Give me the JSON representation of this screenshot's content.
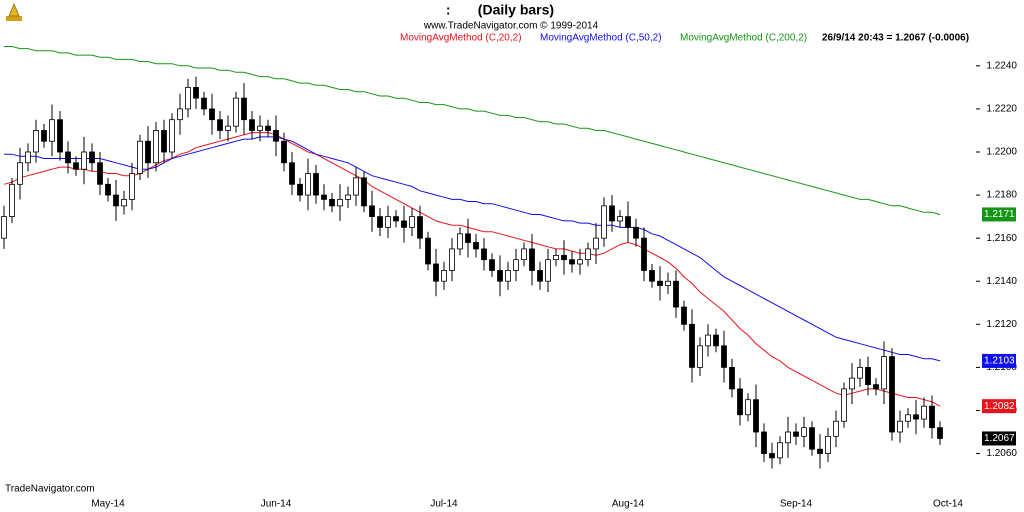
{
  "chart_data": {
    "type": "candlestick",
    "title": ":       (Daily bars)",
    "subtitle": "www.TradeNavigator.com © 1999-2014",
    "status": "26/9/14 20:43 = 1.2067 (-0.0006)",
    "watermark": "TradeNavigator.com",
    "up_color": "#ffffff",
    "down_color": "#000000",
    "ylim": [
      1.2044,
      1.2252
    ],
    "yticks": [
      {
        "value": 1.206,
        "label": "1.2060"
      },
      {
        "value": 1.208,
        "label": "1.2080"
      },
      {
        "value": 1.21,
        "label": "1.2100"
      },
      {
        "value": 1.212,
        "label": "1.2120"
      },
      {
        "value": 1.214,
        "label": "1.2140"
      },
      {
        "value": 1.216,
        "label": "1.2160"
      },
      {
        "value": 1.218,
        "label": "1.2180"
      },
      {
        "value": 1.22,
        "label": "1.2200"
      },
      {
        "value": 1.222,
        "label": "1.2220"
      },
      {
        "value": 1.224,
        "label": "1.2240"
      }
    ],
    "categories": [
      null,
      null,
      null,
      null,
      null,
      null,
      null,
      null,
      null,
      null,
      null,
      null,
      null,
      "May-14",
      null,
      null,
      null,
      null,
      null,
      null,
      null,
      null,
      null,
      null,
      null,
      null,
      null,
      null,
      null,
      null,
      null,
      null,
      null,
      null,
      "Jun-14",
      null,
      null,
      null,
      null,
      null,
      null,
      null,
      null,
      null,
      null,
      null,
      null,
      null,
      null,
      null,
      null,
      null,
      null,
      null,
      null,
      "Jul-14",
      null,
      null,
      null,
      null,
      null,
      null,
      null,
      null,
      null,
      null,
      null,
      null,
      null,
      null,
      null,
      null,
      null,
      null,
      null,
      null,
      null,
      null,
      "Aug-14",
      null,
      null,
      null,
      null,
      null,
      null,
      null,
      null,
      null,
      null,
      null,
      null,
      null,
      null,
      null,
      null,
      null,
      null,
      null,
      null,
      "Sep-14",
      null,
      null,
      null,
      null,
      null,
      null,
      null,
      null,
      null,
      null,
      null,
      null,
      null,
      null,
      null,
      null,
      null,
      null,
      "Oct-14",
      null
    ],
    "open": [
      1.216,
      1.217,
      1.2185,
      1.2195,
      1.22,
      1.221,
      1.2205,
      1.2215,
      1.22,
      1.2195,
      1.2192,
      1.22,
      1.2195,
      1.2185,
      1.218,
      1.2175,
      1.2178,
      1.219,
      1.2205,
      1.2195,
      1.221,
      1.22,
      1.2215,
      1.222,
      1.223,
      1.2225,
      1.222,
      1.2215,
      1.221,
      1.2212,
      1.2225,
      1.2215,
      1.221,
      1.2212,
      1.221,
      1.2205,
      1.2195,
      1.2185,
      1.218,
      1.219,
      1.218,
      1.2178,
      1.2175,
      1.2178,
      1.218,
      1.2188,
      1.2175,
      1.217,
      1.2165,
      1.217,
      1.2168,
      1.2165,
      1.217,
      1.216,
      1.2148,
      1.214,
      1.2145,
      1.2155,
      1.2162,
      1.2158,
      1.2155,
      1.215,
      1.2145,
      1.214,
      1.2145,
      1.215,
      1.2155,
      1.2145,
      1.214,
      1.215,
      1.2152,
      1.215,
      1.2148,
      1.215,
      1.2155,
      1.216,
      1.2175,
      1.2168,
      1.217,
      1.2165,
      1.216,
      1.2145,
      1.214,
      1.2138,
      1.214,
      1.2128,
      1.212,
      1.21,
      1.211,
      1.2115,
      1.211,
      1.21,
      1.209,
      1.2078,
      1.2085,
      1.207,
      1.206,
      1.2058,
      1.2065,
      1.207,
      1.2068,
      1.2072,
      1.2062,
      1.206,
      1.2068,
      1.2075,
      1.209,
      1.2095,
      1.21,
      1.2092,
      1.209,
      1.2105,
      1.207,
      1.2075,
      1.2078,
      1.2076,
      1.2082,
      1.2072,
      null,
      null
    ],
    "high": [
      1.2175,
      1.2188,
      1.2202,
      1.2204,
      1.2215,
      1.2213,
      1.2222,
      1.2219,
      1.2205,
      1.2198,
      1.2207,
      1.2204,
      1.22,
      1.2188,
      1.2187,
      1.2182,
      1.2195,
      1.2208,
      1.2212,
      1.2214,
      1.2215,
      1.2218,
      1.2227,
      1.2234,
      1.2235,
      1.2228,
      1.2227,
      1.2219,
      1.2217,
      1.2228,
      1.2232,
      1.2219,
      1.2217,
      1.2215,
      1.2217,
      1.2209,
      1.22,
      1.2188,
      1.2197,
      1.2194,
      1.2185,
      1.2181,
      1.2185,
      1.2184,
      1.2193,
      1.2191,
      1.2182,
      1.2174,
      1.2175,
      1.2173,
      1.2175,
      1.2174,
      1.2175,
      1.2163,
      1.2155,
      1.2149,
      1.216,
      1.2165,
      1.2169,
      1.2162,
      1.216,
      1.2153,
      1.2152,
      1.2149,
      1.2155,
      1.2158,
      1.2162,
      1.2149,
      1.2155,
      1.2155,
      1.2159,
      1.2154,
      1.2155,
      1.2158,
      1.2167,
      1.2179,
      1.218,
      1.2173,
      1.2177,
      1.2169,
      1.2165,
      1.2148,
      1.2147,
      1.2144,
      1.2145,
      1.2131,
      1.2127,
      1.2114,
      1.212,
      1.2118,
      1.2117,
      1.2104,
      1.2095,
      1.2088,
      1.2092,
      1.2074,
      1.2065,
      1.2068,
      1.2077,
      1.2074,
      1.2077,
      1.2075,
      1.2069,
      1.2072,
      1.208,
      1.2093,
      1.2102,
      1.2104,
      1.2105,
      1.2095,
      1.2112,
      1.2109,
      1.208,
      1.2081,
      1.2085,
      1.2086,
      1.2087,
      1.2075,
      null,
      null
    ],
    "low": [
      1.2155,
      1.2167,
      1.2178,
      1.2191,
      1.2195,
      1.2202,
      1.2198,
      1.2196,
      1.219,
      1.2189,
      1.2185,
      1.2191,
      1.218,
      1.2177,
      1.2168,
      1.2171,
      1.2173,
      1.2187,
      1.2188,
      1.2191,
      1.2195,
      1.2197,
      1.2208,
      1.2216,
      1.222,
      1.2217,
      1.2208,
      1.2206,
      1.2205,
      1.2209,
      1.2208,
      1.2206,
      1.2205,
      1.2207,
      1.2198,
      1.2191,
      1.218,
      1.2177,
      1.2173,
      1.2176,
      1.2173,
      1.2172,
      1.2168,
      1.2174,
      1.2175,
      1.2172,
      1.2163,
      1.2161,
      1.216,
      1.2165,
      1.2158,
      1.2161,
      1.2155,
      1.2145,
      1.2133,
      1.2136,
      1.214,
      1.2152,
      1.2151,
      1.2151,
      1.2145,
      1.2142,
      1.2133,
      1.2136,
      1.214,
      1.2147,
      1.2138,
      1.2136,
      1.2135,
      1.2147,
      1.2143,
      1.2144,
      1.2143,
      1.2147,
      1.2148,
      1.2156,
      1.2163,
      1.2165,
      1.2158,
      1.2156,
      1.214,
      1.2137,
      1.2131,
      1.2134,
      1.2123,
      1.2117,
      1.2093,
      1.2096,
      1.2105,
      1.2107,
      1.2093,
      1.2086,
      1.2073,
      1.2075,
      1.2063,
      1.2056,
      1.2053,
      1.2055,
      1.2058,
      1.2064,
      1.2063,
      1.2059,
      1.2053,
      1.2056,
      1.2063,
      1.2072,
      1.2083,
      1.2091,
      1.2087,
      1.2087,
      1.2083,
      1.2066,
      1.2065,
      1.2072,
      1.2069,
      1.2072,
      1.2067,
      1.2064,
      null,
      null
    ],
    "close": [
      1.217,
      1.2185,
      1.2195,
      1.22,
      1.221,
      1.2205,
      1.2215,
      1.22,
      1.2195,
      1.2192,
      1.22,
      1.2195,
      1.2185,
      1.218,
      1.2175,
      1.2178,
      1.219,
      1.2205,
      1.2195,
      1.221,
      1.22,
      1.2215,
      1.222,
      1.223,
      1.2225,
      1.222,
      1.2215,
      1.221,
      1.2212,
      1.2225,
      1.2215,
      1.221,
      1.2212,
      1.221,
      1.2205,
      1.2195,
      1.2185,
      1.218,
      1.219,
      1.218,
      1.2178,
      1.2175,
      1.2178,
      1.218,
      1.2188,
      1.2175,
      1.217,
      1.2165,
      1.217,
      1.2168,
      1.2165,
      1.217,
      1.216,
      1.2148,
      1.214,
      1.2145,
      1.2155,
      1.2162,
      1.2158,
      1.2155,
      1.215,
      1.2145,
      1.214,
      1.2145,
      1.215,
      1.2155,
      1.2145,
      1.214,
      1.215,
      1.2152,
      1.215,
      1.2148,
      1.215,
      1.2155,
      1.216,
      1.2175,
      1.2168,
      1.217,
      1.2165,
      1.216,
      1.2145,
      1.214,
      1.2138,
      1.214,
      1.2128,
      1.212,
      1.21,
      1.211,
      1.2115,
      1.211,
      1.21,
      1.209,
      1.2078,
      1.2085,
      1.207,
      1.206,
      1.2058,
      1.2065,
      1.207,
      1.2068,
      1.2072,
      1.2062,
      1.206,
      1.2068,
      1.2075,
      1.209,
      1.2095,
      1.21,
      1.2092,
      1.209,
      1.2105,
      1.207,
      1.2075,
      1.2078,
      1.2076,
      1.2082,
      1.2072,
      1.2067,
      null,
      null
    ],
    "series": [
      {
        "name": "MovingAvgMethod (C,20,2)",
        "color": "#e8141c",
        "values": [
          1.2185,
          1.2186,
          1.2188,
          1.2189,
          1.219,
          1.2191,
          1.2192,
          1.2193,
          1.2193,
          1.2192,
          1.2192,
          1.2191,
          1.2191,
          1.219,
          1.219,
          1.2189,
          1.2189,
          1.219,
          1.2192,
          1.2194,
          1.2196,
          1.2197,
          1.2199,
          1.22,
          1.2202,
          1.2203,
          1.2204,
          1.2205,
          1.2206,
          1.2207,
          1.2208,
          1.2209,
          1.2209,
          1.2209,
          1.2208,
          1.2206,
          1.2204,
          1.2202,
          1.22,
          1.2199,
          1.2197,
          1.2195,
          1.2193,
          1.2191,
          1.2189,
          1.2187,
          1.2184,
          1.2182,
          1.218,
          1.2178,
          1.2176,
          1.2174,
          1.2172,
          1.217,
          1.2168,
          1.2167,
          1.2166,
          1.2166,
          1.2165,
          1.2164,
          1.2163,
          1.2163,
          1.2162,
          1.2161,
          1.216,
          1.2159,
          1.2158,
          1.2157,
          1.2156,
          1.2155,
          1.2155,
          1.2154,
          1.2153,
          1.2153,
          1.2152,
          1.2153,
          1.2155,
          1.2157,
          1.2158,
          1.2157,
          1.2155,
          1.2153,
          1.2151,
          1.2149,
          1.2146,
          1.2142,
          1.2139,
          1.2135,
          1.2132,
          1.2129,
          1.2126,
          1.2122,
          1.2118,
          1.2115,
          1.2111,
          1.2108,
          1.2105,
          1.2103,
          1.21,
          1.2098,
          1.2096,
          1.2094,
          1.2092,
          1.209,
          1.2088,
          1.2087,
          1.2088,
          1.2089,
          1.209,
          1.209,
          1.2089,
          1.2088,
          1.2087,
          1.2086,
          1.2086,
          1.2085,
          1.2084,
          1.2082,
          null,
          null
        ]
      },
      {
        "name": "MovingAvgMethod (C,50,2)",
        "color": "#1010e8",
        "values": [
          1.2199,
          1.2199,
          1.2198,
          1.2198,
          1.2198,
          1.2197,
          1.2197,
          1.2197,
          1.2197,
          1.2197,
          1.2197,
          1.2197,
          1.2197,
          1.2196,
          1.2195,
          1.2194,
          1.2193,
          1.2192,
          1.2192,
          1.2193,
          1.2195,
          1.2197,
          1.2198,
          1.2199,
          1.22,
          1.2201,
          1.2202,
          1.2203,
          1.2204,
          1.2205,
          1.2206,
          1.2206,
          1.2207,
          1.2207,
          1.2207,
          1.2206,
          1.2205,
          1.2203,
          1.2201,
          1.2199,
          1.2198,
          1.2197,
          1.2196,
          1.2195,
          1.2193,
          1.2191,
          1.2189,
          1.2188,
          1.2187,
          1.2186,
          1.2185,
          1.2184,
          1.2182,
          1.2181,
          1.218,
          1.2179,
          1.2178,
          1.2178,
          1.2177,
          1.2177,
          1.2176,
          1.2176,
          1.2175,
          1.2174,
          1.2173,
          1.2172,
          1.2171,
          1.2171,
          1.217,
          1.2169,
          1.2168,
          1.2168,
          1.2167,
          1.2167,
          1.2166,
          1.2166,
          1.2166,
          1.2165,
          1.2165,
          1.2165,
          1.2164,
          1.2162,
          1.2161,
          1.2159,
          1.2157,
          1.2155,
          1.2153,
          1.2151,
          1.2148,
          1.2145,
          1.2142,
          1.214,
          1.2138,
          1.2136,
          1.2134,
          1.2132,
          1.213,
          1.2128,
          1.2126,
          1.2124,
          1.2122,
          1.212,
          1.2118,
          1.2116,
          1.2114,
          1.2113,
          1.2112,
          1.2111,
          1.211,
          1.2109,
          1.2108,
          1.2107,
          1.2106,
          1.2106,
          1.2105,
          1.2104,
          1.2104,
          1.2103,
          null,
          null
        ]
      },
      {
        "name": "MovingAvgMethod (C,200,2)",
        "color": "#149614",
        "values": [
          1.2249,
          1.2249,
          1.2248,
          1.2248,
          1.2247,
          1.2247,
          1.2247,
          1.2246,
          1.2246,
          1.2245,
          1.2245,
          1.2245,
          1.2244,
          1.2244,
          1.2243,
          1.2243,
          1.2243,
          1.2242,
          1.2242,
          1.2241,
          1.2241,
          1.2241,
          1.224,
          1.224,
          1.2239,
          1.2239,
          1.2239,
          1.2238,
          1.2238,
          1.2237,
          1.2237,
          1.2236,
          1.2235,
          1.2235,
          1.2234,
          1.2234,
          1.2233,
          1.2232,
          1.2232,
          1.2231,
          1.2231,
          1.223,
          1.2229,
          1.2229,
          1.2228,
          1.2228,
          1.2227,
          1.2226,
          1.2226,
          1.2225,
          1.2225,
          1.2224,
          1.2223,
          1.2223,
          1.2222,
          1.2222,
          1.2221,
          1.222,
          1.222,
          1.2219,
          1.2219,
          1.2218,
          1.2217,
          1.2217,
          1.2216,
          1.2216,
          1.2215,
          1.2214,
          1.2214,
          1.2213,
          1.2213,
          1.2212,
          1.2211,
          1.2211,
          1.221,
          1.221,
          1.2209,
          1.2208,
          1.2207,
          1.2206,
          1.2205,
          1.2204,
          1.2203,
          1.2202,
          1.2201,
          1.22,
          1.2199,
          1.2198,
          1.2197,
          1.2196,
          1.2195,
          1.2194,
          1.2193,
          1.2192,
          1.2191,
          1.219,
          1.2189,
          1.2188,
          1.2187,
          1.2186,
          1.2185,
          1.2184,
          1.2183,
          1.2182,
          1.2181,
          1.218,
          1.2179,
          1.2178,
          1.2178,
          1.2177,
          1.2176,
          1.2175,
          1.2175,
          1.2174,
          1.2173,
          1.2172,
          1.2172,
          1.2171,
          null,
          null
        ]
      }
    ]
  }
}
